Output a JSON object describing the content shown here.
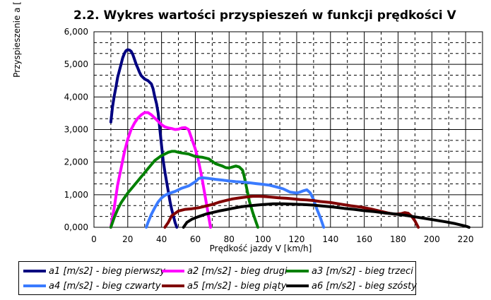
{
  "chart_data": {
    "type": "line",
    "title": "2.2. Wykres wartości przyspieszeń w funkcji prędkości V",
    "xlabel": "Prędkość jazdy V [km/h]",
    "ylabel": "Przyspieszenie a [",
    "xlim": [
      0,
      230
    ],
    "ylim": [
      0,
      6000
    ],
    "x_ticks": [
      0,
      20,
      40,
      60,
      80,
      100,
      120,
      140,
      160,
      180,
      200,
      220
    ],
    "y_ticks": [
      0,
      1000,
      2000,
      3000,
      4000,
      5000,
      6000
    ],
    "y_tick_labels": [
      "0,000",
      "1,000",
      "2,000",
      "3,000",
      "4,000",
      "5,000",
      "6,000"
    ],
    "grid": true,
    "legend_position": "bottom",
    "series": [
      {
        "name": "a1 [m/s2] - bieg pierwszy",
        "color": "#000080",
        "points": [
          [
            10,
            3230
          ],
          [
            11,
            3700
          ],
          [
            12,
            4030
          ],
          [
            13,
            4300
          ],
          [
            14,
            4600
          ],
          [
            15,
            4800
          ],
          [
            16,
            5000
          ],
          [
            17,
            5200
          ],
          [
            18,
            5330
          ],
          [
            19,
            5420
          ],
          [
            20,
            5450
          ],
          [
            21,
            5440
          ],
          [
            22,
            5400
          ],
          [
            23,
            5300
          ],
          [
            24,
            5150
          ],
          [
            25,
            5000
          ],
          [
            26,
            4880
          ],
          [
            27,
            4750
          ],
          [
            28,
            4650
          ],
          [
            29,
            4600
          ],
          [
            30,
            4550
          ],
          [
            32,
            4500
          ],
          [
            34,
            4400
          ],
          [
            35,
            4250
          ],
          [
            36,
            4000
          ],
          [
            37,
            3800
          ],
          [
            38,
            3500
          ],
          [
            39,
            3000
          ],
          [
            40,
            2500
          ],
          [
            41,
            2050
          ],
          [
            42,
            1700
          ],
          [
            43,
            1400
          ],
          [
            44,
            1100
          ],
          [
            45,
            800
          ],
          [
            46,
            550
          ],
          [
            47,
            350
          ],
          [
            48,
            150
          ],
          [
            49,
            0
          ]
        ]
      },
      {
        "name": "a2 [m/s2] - bieg drugi",
        "color": "#ff00ff",
        "points": [
          [
            10,
            0
          ],
          [
            11,
            300
          ],
          [
            12,
            600
          ],
          [
            13,
            950
          ],
          [
            14,
            1300
          ],
          [
            16,
            1800
          ],
          [
            18,
            2300
          ],
          [
            20,
            2700
          ],
          [
            22,
            3000
          ],
          [
            24,
            3200
          ],
          [
            26,
            3350
          ],
          [
            28,
            3450
          ],
          [
            30,
            3520
          ],
          [
            32,
            3520
          ],
          [
            34,
            3450
          ],
          [
            36,
            3350
          ],
          [
            38,
            3250
          ],
          [
            40,
            3150
          ],
          [
            42,
            3080
          ],
          [
            44,
            3050
          ],
          [
            46,
            3030
          ],
          [
            48,
            3000
          ],
          [
            50,
            3010
          ],
          [
            52,
            3050
          ],
          [
            54,
            3060
          ],
          [
            56,
            3000
          ],
          [
            57,
            2850
          ],
          [
            58,
            2700
          ],
          [
            60,
            2400
          ],
          [
            62,
            2000
          ],
          [
            64,
            1500
          ],
          [
            65,
            1200
          ],
          [
            66,
            900
          ],
          [
            67,
            600
          ],
          [
            68,
            300
          ],
          [
            69,
            0
          ]
        ]
      },
      {
        "name": "a3 [m/s2] - bieg trzeci",
        "color": "#008000",
        "points": [
          [
            10,
            0
          ],
          [
            12,
            300
          ],
          [
            14,
            550
          ],
          [
            16,
            750
          ],
          [
            18,
            900
          ],
          [
            20,
            1050
          ],
          [
            24,
            1300
          ],
          [
            28,
            1550
          ],
          [
            32,
            1800
          ],
          [
            36,
            2050
          ],
          [
            40,
            2200
          ],
          [
            44,
            2300
          ],
          [
            46,
            2330
          ],
          [
            48,
            2330
          ],
          [
            50,
            2300
          ],
          [
            52,
            2280
          ],
          [
            56,
            2250
          ],
          [
            60,
            2170
          ],
          [
            64,
            2150
          ],
          [
            68,
            2100
          ],
          [
            72,
            1950
          ],
          [
            76,
            1880
          ],
          [
            78,
            1830
          ],
          [
            80,
            1820
          ],
          [
            82,
            1850
          ],
          [
            84,
            1880
          ],
          [
            86,
            1850
          ],
          [
            88,
            1750
          ],
          [
            89,
            1550
          ],
          [
            90,
            1300
          ],
          [
            91,
            1050
          ],
          [
            92,
            800
          ],
          [
            94,
            450
          ],
          [
            96,
            150
          ],
          [
            97,
            0
          ]
        ]
      },
      {
        "name": "a4 [m/s2] - bieg czwarty",
        "color": "#3a7bff",
        "points": [
          [
            31,
            0
          ],
          [
            32,
            150
          ],
          [
            34,
            400
          ],
          [
            36,
            600
          ],
          [
            38,
            780
          ],
          [
            40,
            900
          ],
          [
            42,
            980
          ],
          [
            44,
            1030
          ],
          [
            48,
            1100
          ],
          [
            52,
            1200
          ],
          [
            56,
            1270
          ],
          [
            60,
            1400
          ],
          [
            62,
            1500
          ],
          [
            64,
            1520
          ],
          [
            68,
            1500
          ],
          [
            72,
            1470
          ],
          [
            76,
            1450
          ],
          [
            80,
            1420
          ],
          [
            84,
            1400
          ],
          [
            90,
            1380
          ],
          [
            96,
            1340
          ],
          [
            100,
            1320
          ],
          [
            104,
            1290
          ],
          [
            108,
            1240
          ],
          [
            112,
            1180
          ],
          [
            116,
            1080
          ],
          [
            120,
            1050
          ],
          [
            122,
            1080
          ],
          [
            124,
            1120
          ],
          [
            126,
            1150
          ],
          [
            128,
            1060
          ],
          [
            130,
            850
          ],
          [
            132,
            550
          ],
          [
            134,
            300
          ],
          [
            135,
            150
          ],
          [
            136,
            0
          ]
        ]
      },
      {
        "name": "a5 [m/s2] - bieg piąty",
        "color": "#800000",
        "points": [
          [
            42,
            0
          ],
          [
            44,
            150
          ],
          [
            46,
            350
          ],
          [
            50,
            500
          ],
          [
            54,
            550
          ],
          [
            58,
            570
          ],
          [
            62,
            600
          ],
          [
            66,
            650
          ],
          [
            70,
            700
          ],
          [
            74,
            770
          ],
          [
            78,
            820
          ],
          [
            82,
            870
          ],
          [
            86,
            900
          ],
          [
            90,
            930
          ],
          [
            94,
            950
          ],
          [
            98,
            950
          ],
          [
            102,
            940
          ],
          [
            106,
            920
          ],
          [
            110,
            900
          ],
          [
            114,
            890
          ],
          [
            118,
            870
          ],
          [
            122,
            850
          ],
          [
            126,
            840
          ],
          [
            130,
            820
          ],
          [
            134,
            790
          ],
          [
            140,
            760
          ],
          [
            146,
            710
          ],
          [
            152,
            660
          ],
          [
            158,
            620
          ],
          [
            164,
            560
          ],
          [
            170,
            490
          ],
          [
            174,
            440
          ],
          [
            178,
            400
          ],
          [
            182,
            420
          ],
          [
            184,
            450
          ],
          [
            186,
            430
          ],
          [
            188,
            340
          ],
          [
            190,
            200
          ],
          [
            192,
            0
          ]
        ]
      },
      {
        "name": "a6 [m/s2] - bieg szósty",
        "color": "#000000",
        "points": [
          [
            53,
            0
          ],
          [
            55,
            150
          ],
          [
            58,
            250
          ],
          [
            62,
            330
          ],
          [
            66,
            400
          ],
          [
            70,
            450
          ],
          [
            74,
            500
          ],
          [
            78,
            540
          ],
          [
            82,
            580
          ],
          [
            86,
            620
          ],
          [
            90,
            650
          ],
          [
            96,
            680
          ],
          [
            100,
            700
          ],
          [
            106,
            720
          ],
          [
            112,
            720
          ],
          [
            118,
            710
          ],
          [
            124,
            700
          ],
          [
            130,
            680
          ],
          [
            136,
            650
          ],
          [
            142,
            620
          ],
          [
            148,
            580
          ],
          [
            154,
            550
          ],
          [
            160,
            510
          ],
          [
            166,
            480
          ],
          [
            172,
            440
          ],
          [
            178,
            410
          ],
          [
            184,
            370
          ],
          [
            190,
            320
          ],
          [
            196,
            270
          ],
          [
            202,
            220
          ],
          [
            208,
            170
          ],
          [
            214,
            110
          ],
          [
            218,
            60
          ],
          [
            221,
            20
          ],
          [
            222,
            0
          ]
        ]
      }
    ]
  }
}
